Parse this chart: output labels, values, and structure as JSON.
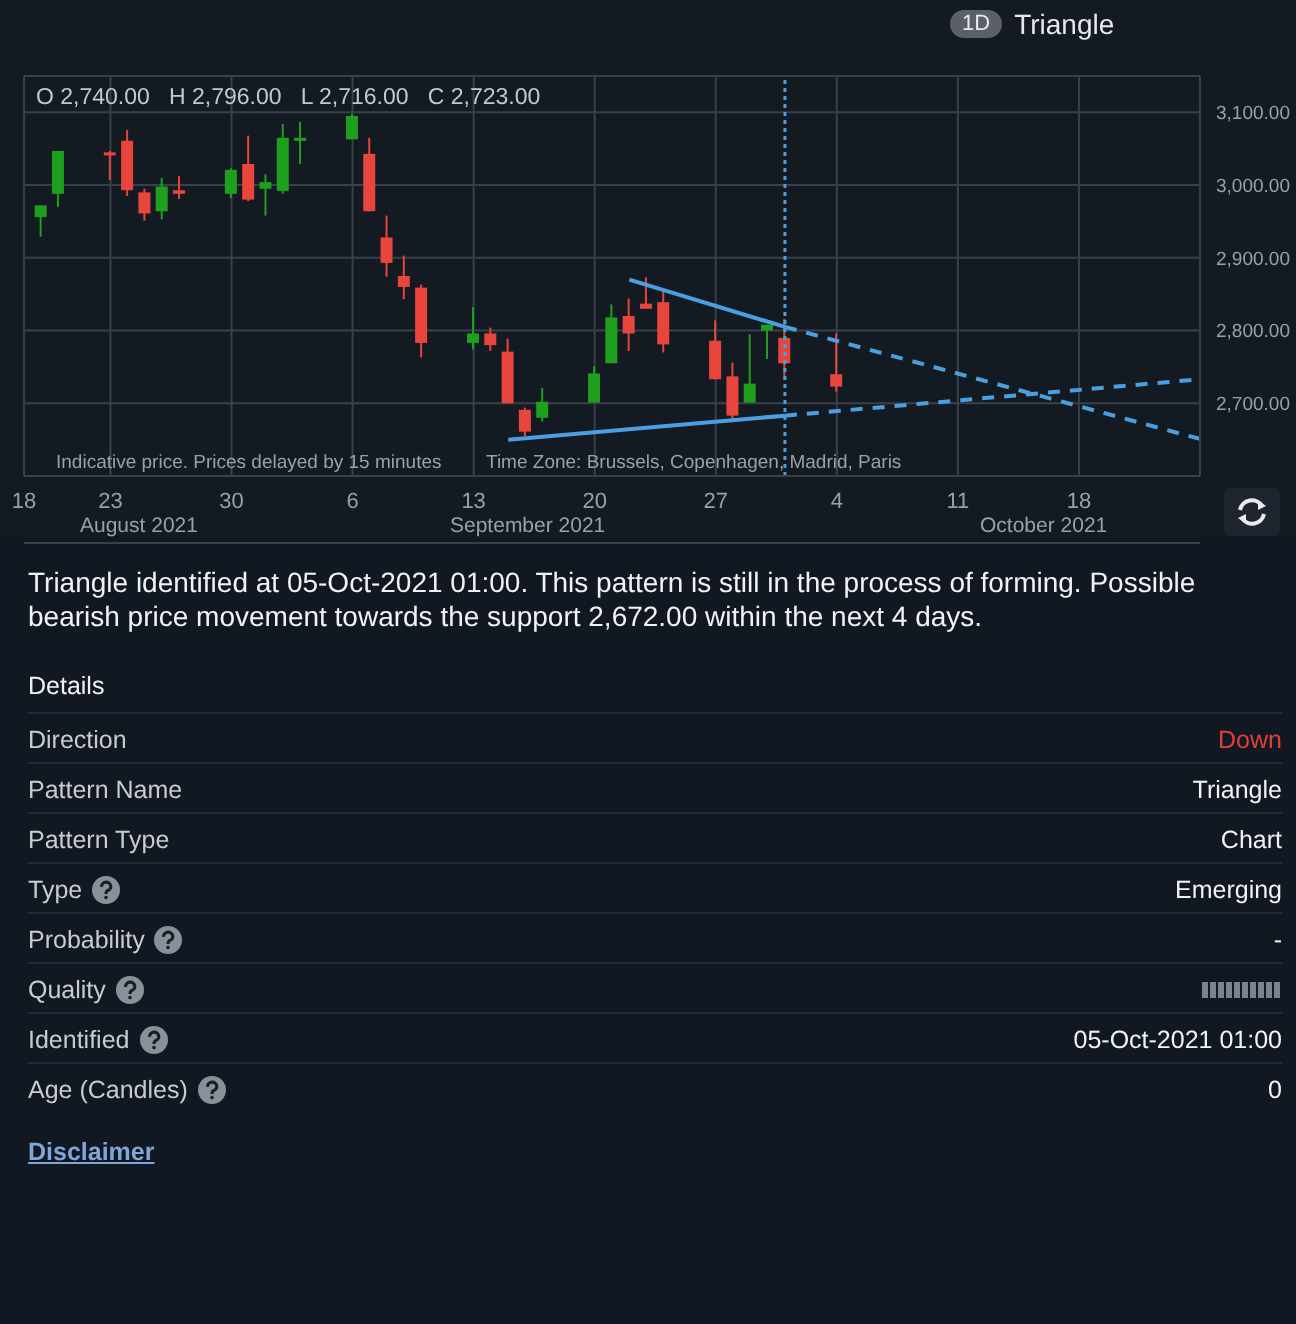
{
  "chart_data": {
    "type": "candlestick",
    "title": "Triangle",
    "annotations": [
      "1D",
      "O 2,740.00   H 2,796.00   L 2,716.00   C 2,723.00",
      "Indicative price. Prices delayed by 15 minutes",
      "Time Zone: Brussels, Copenhagen, Madrid, Paris",
      "August 2021",
      "September 2021",
      "October 2021",
      "Triangle identified at 05-Oct-2021 01:00. This pattern is still in the process of forming. Possible bearish price movement towards the support 2,672.00 within the next 4 days.",
      "Details",
      "Direction",
      "Down",
      "Pattern Name",
      "Triangle",
      "Pattern Type",
      "Chart",
      "Type",
      "Emerging",
      "Probability",
      "-",
      "Quality",
      "Identified",
      "05-Oct-2021 01:00",
      "Age (Candles)",
      "0",
      "Disclaimer"
    ],
    "x": [
      "2021-08-19",
      "2021-08-20",
      "2021-08-23",
      "2021-08-24",
      "2021-08-25",
      "2021-08-26",
      "2021-08-27",
      "2021-08-30",
      "2021-08-31",
      "2021-09-01",
      "2021-09-02",
      "2021-09-03",
      "2021-09-06",
      "2021-09-07",
      "2021-09-08",
      "2021-09-09",
      "2021-09-10",
      "2021-09-13",
      "2021-09-14",
      "2021-09-15",
      "2021-09-16",
      "2021-09-17",
      "2021-09-20",
      "2021-09-21",
      "2021-09-22",
      "2021-09-23",
      "2021-09-24",
      "2021-09-27",
      "2021-09-28",
      "2021-09-29",
      "2021-09-30",
      "2021-10-01",
      "2021-10-04"
    ],
    "ohlc": [
      [
        2956,
        2972,
        2929,
        2972
      ],
      [
        2988,
        3047,
        2970,
        3047
      ],
      [
        3045,
        3047,
        3007,
        3042
      ],
      [
        3061,
        3076,
        2985,
        2993
      ],
      [
        2990,
        2995,
        2951,
        2961
      ],
      [
        2964,
        3010,
        2953,
        2998
      ],
      [
        2993,
        3012,
        2981,
        2988
      ],
      [
        2988,
        3023,
        2982,
        3021
      ],
      [
        3029,
        3068,
        2978,
        2980
      ],
      [
        2995,
        3015,
        2958,
        3004
      ],
      [
        2992,
        3084,
        2988,
        3065
      ],
      [
        3061,
        3087,
        3029,
        3065
      ],
      [
        3063,
        3098,
        3063,
        3095
      ],
      [
        3043,
        3065,
        2964,
        2964
      ],
      [
        2928,
        2958,
        2874,
        2893
      ],
      [
        2875,
        2903,
        2843,
        2860
      ],
      [
        2859,
        2863,
        2763,
        2783
      ],
      [
        2783,
        2832,
        2774,
        2796
      ],
      [
        2796,
        2804,
        2772,
        2780
      ],
      [
        2771,
        2789,
        2700,
        2700
      ],
      [
        2691,
        2694,
        2655,
        2661
      ],
      [
        2680,
        2721,
        2675,
        2702
      ],
      [
        2701,
        2751,
        2701,
        2741
      ],
      [
        2755,
        2836,
        2755,
        2818
      ],
      [
        2820,
        2844,
        2772,
        2796
      ],
      [
        2837,
        2873,
        2830,
        2830
      ],
      [
        2839,
        2857,
        2770,
        2781
      ],
      [
        2786,
        2814,
        2733,
        2733
      ],
      [
        2737,
        2756,
        2674,
        2683
      ],
      [
        2701,
        2795,
        2701,
        2727
      ],
      [
        2800,
        2808,
        2761,
        2808
      ],
      [
        2790,
        2816,
        2733,
        2755
      ],
      [
        2740,
        2796,
        2716,
        2723
      ]
    ],
    "colors": [
      "#1ea01e",
      "#1ea01e",
      "#e8453c",
      "#e8453c",
      "#e8453c",
      "#1ea01e",
      "#e8453c",
      "#1ea01e",
      "#e8453c",
      "#1ea01e",
      "#1ea01e",
      "#1ea01e",
      "#1ea01e",
      "#e8453c",
      "#e8453c",
      "#e8453c",
      "#e8453c",
      "#1ea01e",
      "#e8453c",
      "#e8453c",
      "#e8453c",
      "#1ea01e",
      "#1ea01e",
      "#1ea01e",
      "#e8453c",
      "#e8453c",
      "#e8453c",
      "#e8453c",
      "#e8453c",
      "#1ea01e",
      "#1ea01e",
      "#e8453c",
      "#e8453c"
    ],
    "series": [
      {
        "type": "line",
        "color": "#4a9fe0",
        "line_style": "solid",
        "x": [
          "2021-09-22",
          "2021-10-01"
        ],
        "values": [
          2870,
          2805
        ]
      },
      {
        "type": "line",
        "color": "#4a9fe0",
        "line_style": "dashed",
        "x": [
          "2021-10-01",
          "2021-10-25"
        ],
        "values": [
          2805,
          2651
        ]
      },
      {
        "type": "line",
        "color": "#4a9fe0",
        "line_style": "solid",
        "x": [
          "2021-09-15",
          "2021-10-01"
        ],
        "values": [
          2650,
          2683
        ]
      },
      {
        "type": "line",
        "color": "#4a9fe0",
        "line_style": "dashed",
        "x": [
          "2021-10-01",
          "2021-10-25"
        ],
        "values": [
          2683,
          2733
        ]
      }
    ],
    "ref_lines": [
      {
        "axis": "x",
        "value": "2021-10-01",
        "color": "#4a9fe0",
        "line_style": "dotted"
      }
    ],
    "xlim": [
      "2021-08-18",
      "2021-10-25"
    ],
    "xticks": [
      {
        "value": "2021-08-18",
        "label": "18"
      },
      {
        "value": "2021-08-23",
        "label": "23"
      },
      {
        "value": "2021-08-30",
        "label": "30"
      },
      {
        "value": "2021-09-06",
        "label": "6"
      },
      {
        "value": "2021-09-13",
        "label": "13"
      },
      {
        "value": "2021-09-20",
        "label": "20"
      },
      {
        "value": "2021-09-27",
        "label": "27"
      },
      {
        "value": "2021-10-04",
        "label": "4"
      },
      {
        "value": "2021-10-11",
        "label": "11"
      },
      {
        "value": "2021-10-18",
        "label": "18"
      }
    ],
    "ylim": [
      2600,
      3150
    ],
    "yticks": [
      {
        "value": 2700,
        "label": "2,700.00"
      },
      {
        "value": 2800,
        "label": "2,800.00"
      },
      {
        "value": 2900,
        "label": "2,900.00"
      },
      {
        "value": 3000,
        "label": "3,000.00"
      },
      {
        "value": 3100,
        "label": "3,100.00"
      }
    ],
    "grid": true
  }
}
